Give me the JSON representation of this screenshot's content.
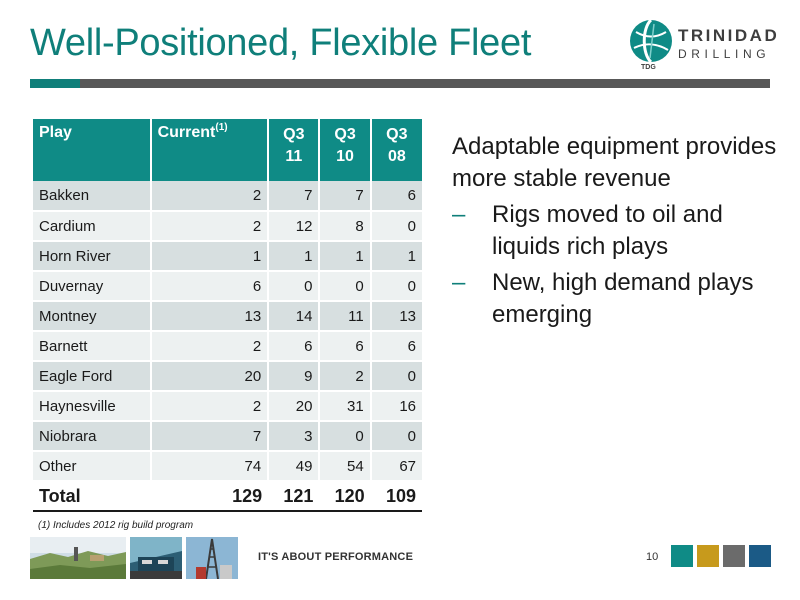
{
  "slide": {
    "title": "Well-Positioned, Flexible Fleet",
    "logo": {
      "line1": "TRINIDAD",
      "line2": "DRILLING",
      "mark": "TDG"
    }
  },
  "table": {
    "headers": {
      "play": "Play",
      "current": "Current",
      "current_sup": "(1)",
      "q3_11": [
        "Q3",
        "11"
      ],
      "q3_10": [
        "Q3",
        "10"
      ],
      "q3_08": [
        "Q3",
        "08"
      ]
    },
    "rows": [
      {
        "play": "Bakken",
        "current": "2",
        "q3_11": "7",
        "q3_10": "7",
        "q3_08": "6"
      },
      {
        "play": "Cardium",
        "current": "2",
        "q3_11": "12",
        "q3_10": "8",
        "q3_08": "0"
      },
      {
        "play": "Horn River",
        "current": "1",
        "q3_11": "1",
        "q3_10": "1",
        "q3_08": "1"
      },
      {
        "play": "Duvernay",
        "current": "6",
        "q3_11": "0",
        "q3_10": "0",
        "q3_08": "0"
      },
      {
        "play": "Montney",
        "current": "13",
        "q3_11": "14",
        "q3_10": "11",
        "q3_08": "13"
      },
      {
        "play": "Barnett",
        "current": "2",
        "q3_11": "6",
        "q3_10": "6",
        "q3_08": "6"
      },
      {
        "play": "Eagle Ford",
        "current": "20",
        "q3_11": "9",
        "q3_10": "2",
        "q3_08": "0"
      },
      {
        "play": "Haynesville",
        "current": "2",
        "q3_11": "20",
        "q3_10": "31",
        "q3_08": "16"
      },
      {
        "play": "Niobrara",
        "current": "7",
        "q3_11": "3",
        "q3_10": "0",
        "q3_08": "0"
      },
      {
        "play": "Other",
        "current": "74",
        "q3_11": "49",
        "q3_10": "54",
        "q3_08": "67"
      }
    ],
    "total": {
      "play": "Total",
      "current": "129",
      "q3_11": "121",
      "q3_10": "120",
      "q3_08": "109"
    },
    "footnote": "(1) Includes 2012 rig build program"
  },
  "bullets": {
    "lead": "Adaptable equipment provides more stable revenue",
    "items": [
      {
        "dash": "–",
        "text": "Rigs moved to oil and liquids rich plays"
      },
      {
        "dash": "–",
        "text": "New, high demand plays emerging"
      }
    ]
  },
  "footer": {
    "tagline": "IT'S ABOUT PERFORMANCE",
    "page_number": "10",
    "swatches": [
      "#0f8b86",
      "#c79a1c",
      "#6b6b6b",
      "#1b5a86"
    ],
    "photos": [
      "landscape-photo",
      "rig-photo",
      "derrick-photo"
    ]
  },
  "colors": {
    "accent": "#0f7f7a",
    "header_fill": "#0f8b86",
    "row_odd": "#d7dfe0",
    "row_even": "#edf1f1",
    "rule": "#585858"
  }
}
